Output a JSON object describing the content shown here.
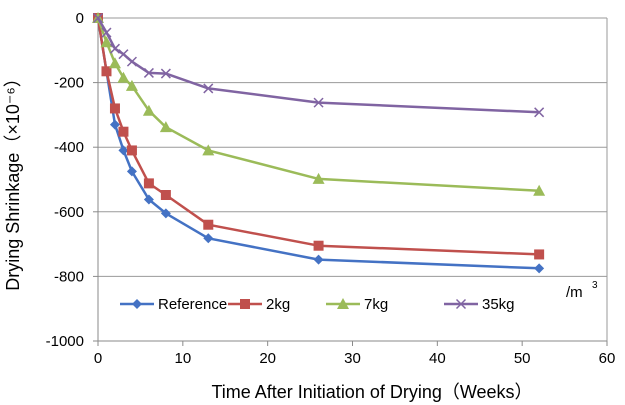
{
  "chart_data": {
    "type": "line",
    "xlabel": "Time After Initiation of Drying（Weeks）",
    "ylabel": "Drying Shrinkage（×10⁻⁶）",
    "xlim": [
      0,
      60
    ],
    "ylim": [
      -1000,
      0
    ],
    "xticks": [
      0,
      10,
      20,
      30,
      40,
      50,
      60
    ],
    "yticks": [
      0,
      -200,
      -400,
      -600,
      -800,
      -1000
    ],
    "grid": "horizontal",
    "legend_position": "bottom",
    "unit_annotation": {
      "base": "/m",
      "exponent": "3"
    },
    "series": [
      {
        "name": "Reference",
        "color": "#4472C4",
        "marker": "diamond",
        "points": [
          [
            0,
            0
          ],
          [
            1,
            -165
          ],
          [
            2,
            -330
          ],
          [
            3,
            -410
          ],
          [
            4,
            -475
          ],
          [
            6,
            -562
          ],
          [
            8,
            -605
          ],
          [
            13,
            -682
          ],
          [
            26,
            -748
          ],
          [
            52,
            -775
          ]
        ]
      },
      {
        "name": "2kg",
        "color": "#C0504D",
        "marker": "square",
        "points": [
          [
            0,
            0
          ],
          [
            1,
            -165
          ],
          [
            2,
            -280
          ],
          [
            3,
            -352
          ],
          [
            4,
            -410
          ],
          [
            6,
            -512
          ],
          [
            8,
            -548
          ],
          [
            13,
            -640
          ],
          [
            26,
            -705
          ],
          [
            52,
            -732
          ]
        ]
      },
      {
        "name": "7kg",
        "color": "#9BBB59",
        "marker": "triangle",
        "points": [
          [
            0,
            0
          ],
          [
            1,
            -75
          ],
          [
            2,
            -140
          ],
          [
            3,
            -185
          ],
          [
            4,
            -210
          ],
          [
            6,
            -287
          ],
          [
            8,
            -338
          ],
          [
            13,
            -410
          ],
          [
            26,
            -498
          ],
          [
            52,
            -535
          ]
        ]
      },
      {
        "name": "35kg",
        "color": "#8064A2",
        "marker": "cross",
        "points": [
          [
            0,
            0
          ],
          [
            1,
            -45
          ],
          [
            2,
            -95
          ],
          [
            3,
            -112
          ],
          [
            4,
            -135
          ],
          [
            6,
            -170
          ],
          [
            8,
            -172
          ],
          [
            13,
            -218
          ],
          [
            26,
            -262
          ],
          [
            52,
            -292
          ]
        ]
      }
    ]
  }
}
